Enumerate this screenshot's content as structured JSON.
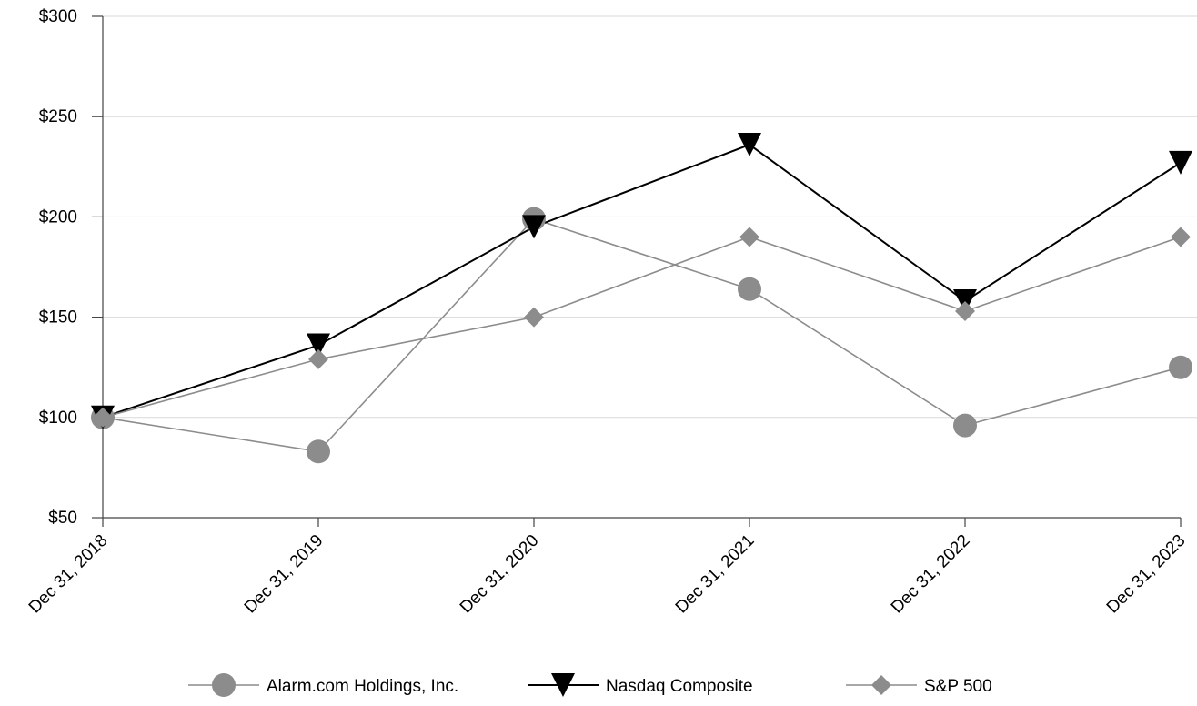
{
  "chart_data": {
    "type": "line",
    "title": "",
    "xlabel": "",
    "ylabel": "",
    "categories": [
      "Dec 31, 2018",
      "Dec 31, 2019",
      "Dec 31, 2020",
      "Dec 31, 2021",
      "Dec 31, 2022",
      "Dec 31, 2023"
    ],
    "ylim": [
      50,
      300
    ],
    "yticks": [
      50,
      100,
      150,
      200,
      250,
      300
    ],
    "ytick_labels": [
      "$50",
      "$100",
      "$150",
      "$200",
      "$250",
      "$300"
    ],
    "grid": true,
    "legend_position": "bottom",
    "series": [
      {
        "name": "Alarm.com Holdings, Inc.",
        "values": [
          100,
          83,
          199,
          164,
          96,
          125
        ],
        "color": "#8c8c8c",
        "marker": "circle"
      },
      {
        "name": "Nasdaq Composite",
        "values": [
          100,
          136,
          195,
          236,
          158,
          227
        ],
        "color": "#000000",
        "marker": "triangle-down"
      },
      {
        "name": "S&P 500",
        "values": [
          100,
          129,
          150,
          190,
          153,
          190
        ],
        "color": "#8c8c8c",
        "marker": "diamond"
      }
    ]
  }
}
